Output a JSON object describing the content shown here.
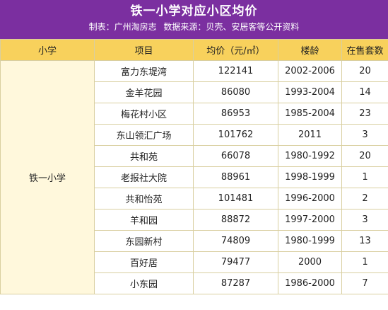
{
  "header": {
    "title": "铁一小学对应小区均价",
    "subtitle": "制表：广州淘房志    数据来源：贝壳、安居客等公开资料"
  },
  "colors": {
    "header_bg": "#7b2fa0",
    "column_header_bg": "#f8d15c",
    "school_cell_bg": "#fff8dc"
  },
  "table": {
    "columns": [
      "小学",
      "项目",
      "均价（元/㎡）",
      "楼龄",
      "在售套数"
    ],
    "school": "铁一小学",
    "rows": [
      {
        "project": "富力东堤湾",
        "price": "122141",
        "age": "2002-2006",
        "count": "20"
      },
      {
        "project": "金羊花园",
        "price": "86080",
        "age": "1993-2004",
        "count": "14"
      },
      {
        "project": "梅花村小区",
        "price": "86953",
        "age": "1985-2004",
        "count": "23"
      },
      {
        "project": "东山领汇广场",
        "price": "101762",
        "age": "2011",
        "count": "3"
      },
      {
        "project": "共和苑",
        "price": "66078",
        "age": "1980-1992",
        "count": "20"
      },
      {
        "project": "老报社大院",
        "price": "88961",
        "age": "1998-1999",
        "count": "1"
      },
      {
        "project": "共和怡苑",
        "price": "101481",
        "age": "1996-2000",
        "count": "2"
      },
      {
        "project": "羊和园",
        "price": "88872",
        "age": "1997-2000",
        "count": "3"
      },
      {
        "project": "东园新村",
        "price": "74809",
        "age": "1980-1999",
        "count": "13"
      },
      {
        "project": "百好居",
        "price": "79477",
        "age": "2000",
        "count": "1"
      },
      {
        "project": "小东园",
        "price": "87287",
        "age": "1986-2000",
        "count": "7"
      }
    ]
  }
}
